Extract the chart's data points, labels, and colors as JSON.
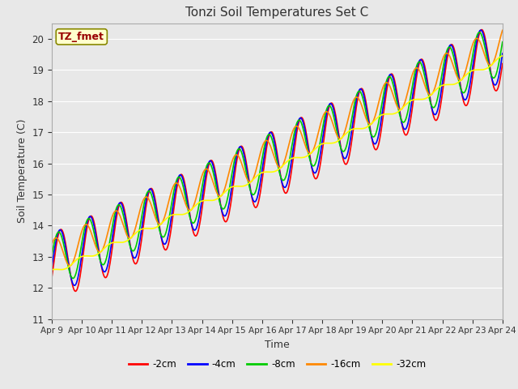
{
  "title": "Tonzi Soil Temperatures Set C",
  "xlabel": "Time",
  "ylabel": "Soil Temperature (C)",
  "ylim": [
    11.0,
    20.5
  ],
  "yticks": [
    11.0,
    12.0,
    13.0,
    14.0,
    15.0,
    16.0,
    17.0,
    18.0,
    19.0,
    20.0
  ],
  "xtick_labels": [
    "Apr 9",
    "Apr 10",
    "Apr 11",
    "Apr 12",
    "Apr 13",
    "Apr 14",
    "Apr 15",
    "Apr 16",
    "Apr 17",
    "Apr 18",
    "Apr 19",
    "Apr 20",
    "Apr 21",
    "Apr 22",
    "Apr 23",
    "Apr 24"
  ],
  "series_colors": [
    "#ff0000",
    "#0000ff",
    "#00cc00",
    "#ff8800",
    "#ffff00"
  ],
  "series_labels": [
    "-2cm",
    "-4cm",
    "-8cm",
    "-16cm",
    "-32cm"
  ],
  "annotation_text": "TZ_fmet",
  "annotation_color": "#990000",
  "annotation_bg": "#ffffcc",
  "annotation_border": "#888800",
  "plot_bg_color": "#e8e8e8",
  "fig_bg_color": "#e8e8e8",
  "grid_color": "#ffffff",
  "line_width": 1.2,
  "n_points": 720
}
